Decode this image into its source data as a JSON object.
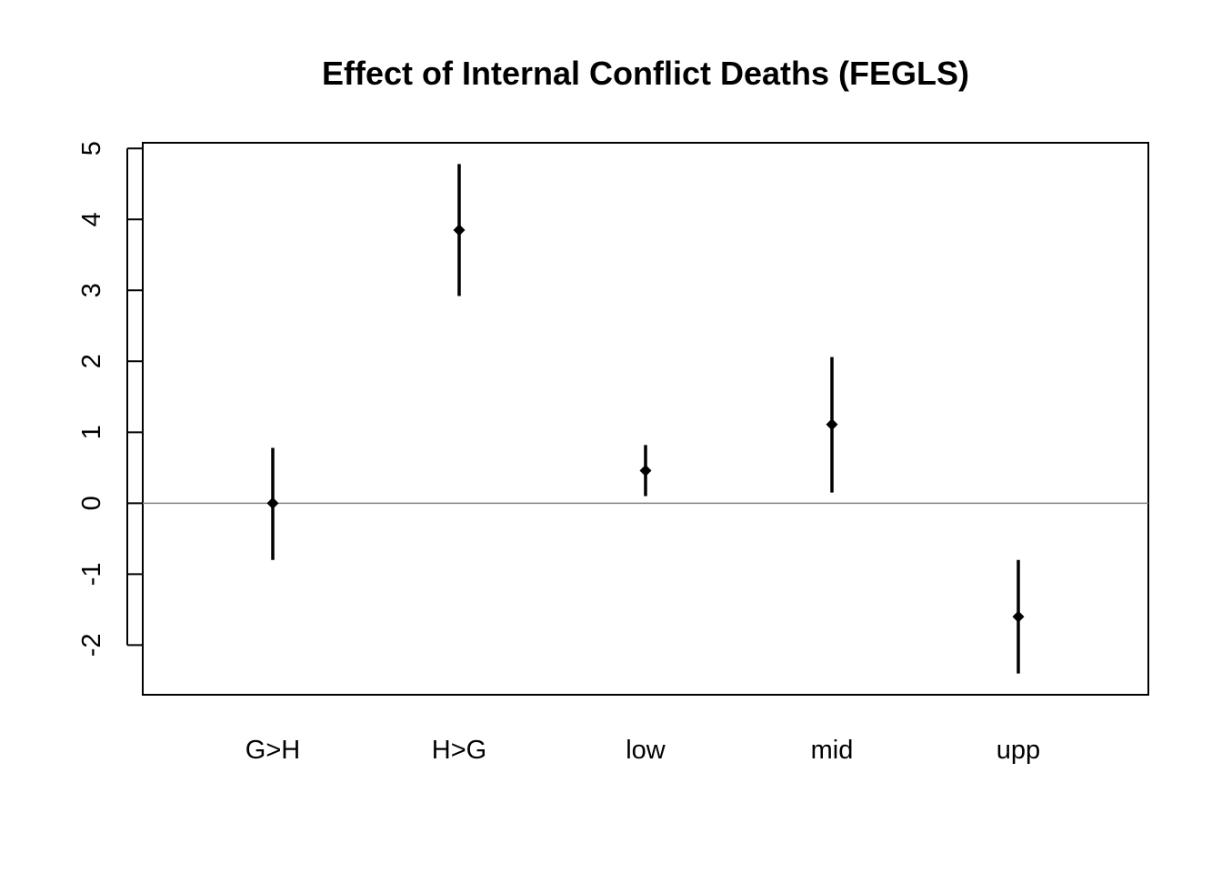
{
  "chart_data": {
    "type": "scatter",
    "title": "Effect of Internal Conflict Deaths (FEGLS)",
    "xlabel": "",
    "ylabel": "",
    "categories": [
      "G>H",
      "H>G",
      "low",
      "mid",
      "upp"
    ],
    "series": [
      {
        "estimate": [
          0.0,
          3.85,
          0.46,
          1.11,
          -1.6
        ],
        "lower": [
          -0.8,
          2.92,
          0.1,
          0.15,
          -2.4
        ],
        "upper": [
          0.78,
          4.78,
          0.82,
          2.06,
          -0.8
        ]
      }
    ],
    "reference_line_y": 0,
    "ylim": [
      -2.7,
      5.08
    ],
    "yticks": [
      -2,
      -1,
      0,
      1,
      2,
      3,
      4,
      5
    ],
    "ytick_labels": [
      "-2",
      "-1",
      "0",
      "1",
      "2",
      "3",
      "4",
      "5"
    ],
    "grid": false,
    "legend": "none",
    "marker": "diamond",
    "colors": {
      "marks": "#000000",
      "reference_line": "#808080"
    }
  }
}
